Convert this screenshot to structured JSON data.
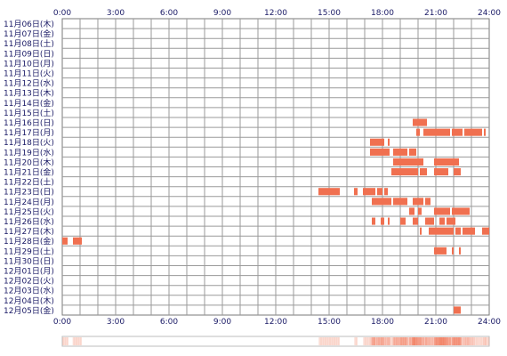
{
  "chart_data": {
    "type": "heatmap",
    "x_ticks": [
      "0:00",
      "3:00",
      "6:00",
      "9:00",
      "12:00",
      "15:00",
      "18:00",
      "21:00",
      "24:00"
    ],
    "xlim": [
      0,
      24
    ],
    "days": [
      "11月06日(木)",
      "11月07日(金)",
      "11月08日(土)",
      "11月09日(日)",
      "11月10日(月)",
      "11月11日(火)",
      "11月12日(水)",
      "11月13日(木)",
      "11月14日(金)",
      "11月15日(土)",
      "11月16日(日)",
      "11月17日(月)",
      "11月18日(火)",
      "11月19日(水)",
      "11月20日(木)",
      "11月21日(金)",
      "11月22日(土)",
      "11月23日(日)",
      "11月24日(月)",
      "11月25日(火)",
      "11月26日(水)",
      "11月27日(木)",
      "11月28日(金)",
      "11月29日(土)",
      "11月30日(日)",
      "12月01日(月)",
      "12月02日(火)",
      "12月03日(水)",
      "12月04日(木)",
      "12月05日(金)"
    ],
    "grid": true,
    "bar_color": "#f07050",
    "activity": [
      [],
      [],
      [],
      [],
      [],
      [],
      [],
      [],
      [],
      [],
      [
        [
          19.7,
          20.5
        ]
      ],
      [
        [
          19.9,
          20.1
        ],
        [
          20.3,
          21.8
        ],
        [
          21.9,
          22.5
        ],
        [
          22.6,
          23.6
        ],
        [
          23.7,
          23.8
        ]
      ],
      [
        [
          17.3,
          18.1
        ],
        [
          18.3,
          18.4
        ]
      ],
      [
        [
          17.3,
          18.4
        ],
        [
          18.6,
          19.4
        ],
        [
          19.5,
          19.9
        ]
      ],
      [
        [
          18.6,
          20.3
        ],
        [
          20.9,
          22.3
        ]
      ],
      [
        [
          18.5,
          20.0
        ],
        [
          20.1,
          20.5
        ],
        [
          20.9,
          21.7
        ],
        [
          22.0,
          22.4
        ]
      ],
      [],
      [
        [
          14.4,
          15.6
        ],
        [
          16.4,
          16.6
        ],
        [
          16.9,
          17.6
        ],
        [
          17.7,
          18.0
        ],
        [
          18.1,
          18.3
        ]
      ],
      [
        [
          17.4,
          18.5
        ],
        [
          18.6,
          19.4
        ],
        [
          19.7,
          20.3
        ],
        [
          20.4,
          20.7
        ]
      ],
      [
        [
          19.5,
          19.8
        ],
        [
          20.0,
          20.2
        ],
        [
          20.9,
          21.8
        ],
        [
          21.9,
          22.9
        ]
      ],
      [
        [
          17.4,
          17.6
        ],
        [
          17.9,
          18.1
        ],
        [
          18.3,
          18.4
        ],
        [
          19.0,
          19.3
        ],
        [
          19.7,
          20.0
        ],
        [
          20.4,
          20.9
        ],
        [
          21.2,
          21.5
        ],
        [
          21.6,
          22.1
        ]
      ],
      [
        [
          20.1,
          20.2
        ],
        [
          20.6,
          22.0
        ],
        [
          22.1,
          22.4
        ],
        [
          22.5,
          23.2
        ],
        [
          23.6,
          24.0
        ]
      ],
      [
        [
          0.0,
          0.3
        ],
        [
          0.6,
          1.1
        ]
      ],
      [
        [
          20.9,
          21.6
        ],
        [
          21.9,
          22.0
        ],
        [
          22.3,
          22.4
        ]
      ],
      [],
      [],
      [],
      [],
      [],
      [
        [
          22.0,
          22.4
        ]
      ]
    ]
  }
}
